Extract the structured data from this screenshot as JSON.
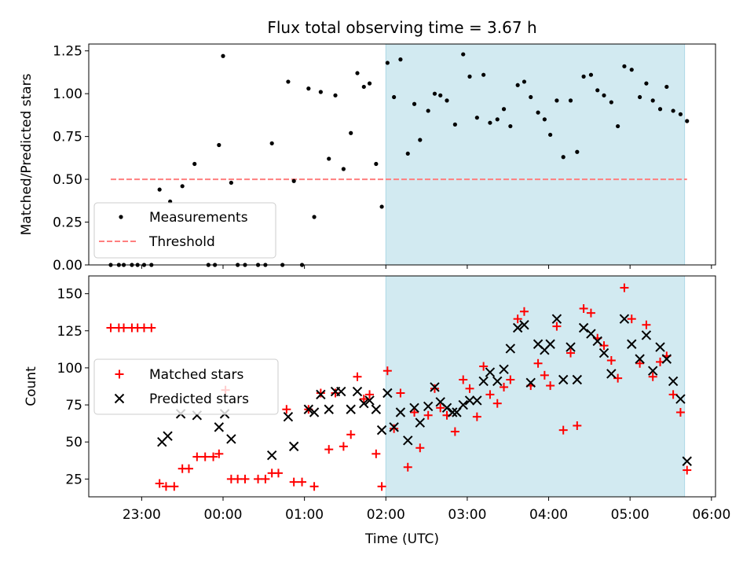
{
  "chart_data": [
    {
      "type": "scatter",
      "title": "Flux total observing time = 3.67 h",
      "xlabel": "",
      "ylabel": "Matched/Predicted stars",
      "xlim": [
        22.35,
        6.05
      ],
      "ylim": [
        0,
        1.29
      ],
      "yticks": [
        0,
        0.25,
        0.5,
        0.75,
        1.0,
        1.25
      ],
      "ytick_labels": [
        "0.00",
        "0.25",
        "0.50",
        "0.75",
        "1.00",
        "1.25"
      ],
      "shaded_span": [
        2.0,
        5.67
      ],
      "shade_color": "#add8e6",
      "threshold": {
        "name": "Threshold",
        "value": 0.5,
        "color": "#ff7f7f"
      },
      "legend_placement": "lower-left",
      "series": [
        {
          "name": "Measurements",
          "color": "#000000",
          "marker": "dot",
          "points": [
            [
              22.62,
              0
            ],
            [
              22.72,
              0
            ],
            [
              22.78,
              0
            ],
            [
              22.88,
              0
            ],
            [
              22.95,
              0
            ],
            [
              23.03,
              0
            ],
            [
              23.12,
              0
            ],
            [
              23.22,
              0.44
            ],
            [
              23.35,
              0.37
            ],
            [
              23.5,
              0.46
            ],
            [
              23.65,
              0.59
            ],
            [
              23.82,
              0
            ],
            [
              23.9,
              0
            ],
            [
              23.95,
              0.7
            ],
            [
              24.0,
              1.22
            ],
            [
              24.1,
              0.48
            ],
            [
              24.18,
              0
            ],
            [
              24.27,
              0
            ],
            [
              24.43,
              0
            ],
            [
              24.52,
              0
            ],
            [
              24.6,
              0.71
            ],
            [
              24.73,
              0
            ],
            [
              24.8,
              1.07
            ],
            [
              24.87,
              0.49
            ],
            [
              24.97,
              0
            ],
            [
              25.05,
              1.03
            ],
            [
              25.12,
              0.28
            ],
            [
              25.2,
              1.01
            ],
            [
              25.3,
              0.62
            ],
            [
              25.38,
              0.99
            ],
            [
              25.48,
              0.56
            ],
            [
              25.57,
              0.77
            ],
            [
              25.65,
              1.12
            ],
            [
              25.73,
              1.04
            ],
            [
              25.8,
              1.06
            ],
            [
              25.88,
              0.59
            ],
            [
              25.95,
              0.34
            ],
            [
              26.02,
              1.18
            ],
            [
              26.1,
              0.98
            ],
            [
              26.18,
              1.2
            ],
            [
              26.27,
              0.65
            ],
            [
              26.35,
              0.94
            ],
            [
              26.42,
              0.73
            ],
            [
              26.52,
              0.9
            ],
            [
              26.6,
              1.0
            ],
            [
              26.67,
              0.99
            ],
            [
              26.75,
              0.96
            ],
            [
              26.85,
              0.82
            ],
            [
              26.95,
              1.23
            ],
            [
              27.03,
              1.1
            ],
            [
              27.12,
              0.86
            ],
            [
              27.2,
              1.11
            ],
            [
              27.28,
              0.83
            ],
            [
              27.37,
              0.85
            ],
            [
              27.45,
              0.91
            ],
            [
              27.53,
              0.81
            ],
            [
              27.62,
              1.05
            ],
            [
              27.7,
              1.07
            ],
            [
              27.78,
              0.98
            ],
            [
              27.87,
              0.89
            ],
            [
              27.95,
              0.85
            ],
            [
              28.02,
              0.76
            ],
            [
              28.1,
              0.96
            ],
            [
              28.18,
              0.63
            ],
            [
              28.27,
              0.96
            ],
            [
              28.35,
              0.66
            ],
            [
              28.43,
              1.1
            ],
            [
              28.52,
              1.11
            ],
            [
              28.6,
              1.02
            ],
            [
              28.68,
              0.99
            ],
            [
              28.77,
              0.95
            ],
            [
              28.85,
              0.81
            ],
            [
              28.93,
              1.16
            ],
            [
              29.02,
              1.14
            ],
            [
              29.12,
              0.98
            ],
            [
              29.2,
              1.06
            ],
            [
              29.28,
              0.96
            ],
            [
              29.37,
              0.91
            ],
            [
              29.45,
              1.04
            ],
            [
              29.53,
              0.9
            ],
            [
              29.62,
              0.88
            ],
            [
              29.7,
              0.84
            ]
          ]
        }
      ]
    },
    {
      "type": "scatter",
      "title": "",
      "xlabel": "Time (UTC)",
      "ylabel": "Count",
      "xlim": [
        22.35,
        6.05
      ],
      "ylim": [
        13,
        162
      ],
      "yticks": [
        25,
        50,
        75,
        100,
        125,
        150
      ],
      "ytick_labels": [
        "25",
        "50",
        "75",
        "100",
        "125",
        "150"
      ],
      "xticks": [
        23,
        24,
        25,
        26,
        27,
        28,
        29,
        30
      ],
      "xtick_labels": [
        "23:00",
        "00:00",
        "01:00",
        "02:00",
        "03:00",
        "04:00",
        "05:00",
        "06:00"
      ],
      "shaded_span": [
        2.0,
        5.67
      ],
      "shade_color": "#add8e6",
      "legend_placement": "center-left",
      "series": [
        {
          "name": "Matched stars",
          "color": "#ff0000",
          "marker": "plus",
          "points": [
            [
              22.62,
              127
            ],
            [
              22.72,
              127
            ],
            [
              22.78,
              127
            ],
            [
              22.88,
              127
            ],
            [
              22.95,
              127
            ],
            [
              23.03,
              127
            ],
            [
              23.12,
              127
            ],
            [
              23.22,
              22
            ],
            [
              23.3,
              20
            ],
            [
              23.4,
              20
            ],
            [
              23.5,
              32
            ],
            [
              23.58,
              32
            ],
            [
              23.68,
              40
            ],
            [
              23.78,
              40
            ],
            [
              23.88,
              40
            ],
            [
              23.95,
              42
            ],
            [
              24.03,
              85
            ],
            [
              24.1,
              25
            ],
            [
              24.18,
              25
            ],
            [
              24.27,
              25
            ],
            [
              24.43,
              25
            ],
            [
              24.52,
              25
            ],
            [
              24.6,
              29
            ],
            [
              24.68,
              29
            ],
            [
              24.78,
              72
            ],
            [
              24.87,
              23
            ],
            [
              24.97,
              23
            ],
            [
              25.05,
              72
            ],
            [
              25.12,
              20
            ],
            [
              25.2,
              83
            ],
            [
              25.3,
              45
            ],
            [
              25.38,
              83
            ],
            [
              25.48,
              47
            ],
            [
              25.57,
              55
            ],
            [
              25.65,
              94
            ],
            [
              25.73,
              79
            ],
            [
              25.8,
              82
            ],
            [
              25.88,
              42
            ],
            [
              25.95,
              20
            ],
            [
              26.02,
              98
            ],
            [
              26.1,
              59
            ],
            [
              26.18,
              83
            ],
            [
              26.27,
              33
            ],
            [
              26.35,
              70
            ],
            [
              26.42,
              46
            ],
            [
              26.52,
              68
            ],
            [
              26.6,
              86
            ],
            [
              26.67,
              73
            ],
            [
              26.75,
              68
            ],
            [
              26.85,
              57
            ],
            [
              26.95,
              92
            ],
            [
              27.03,
              86
            ],
            [
              27.12,
              67
            ],
            [
              27.2,
              101
            ],
            [
              27.28,
              82
            ],
            [
              27.37,
              76
            ],
            [
              27.45,
              87
            ],
            [
              27.53,
              92
            ],
            [
              27.62,
              133
            ],
            [
              27.7,
              138
            ],
            [
              27.78,
              88
            ],
            [
              27.87,
              103
            ],
            [
              27.95,
              95
            ],
            [
              28.02,
              88
            ],
            [
              28.1,
              128
            ],
            [
              28.18,
              58
            ],
            [
              28.27,
              110
            ],
            [
              28.35,
              61
            ],
            [
              28.43,
              140
            ],
            [
              28.52,
              137
            ],
            [
              28.6,
              120
            ],
            [
              28.68,
              115
            ],
            [
              28.77,
              105
            ],
            [
              28.85,
              93
            ],
            [
              28.93,
              154
            ],
            [
              29.02,
              133
            ],
            [
              29.12,
              103
            ],
            [
              29.2,
              129
            ],
            [
              29.28,
              94
            ],
            [
              29.37,
              104
            ],
            [
              29.45,
              108
            ],
            [
              29.53,
              82
            ],
            [
              29.62,
              70
            ],
            [
              29.7,
              31
            ]
          ]
        },
        {
          "name": "Predicted stars",
          "color": "#000000",
          "marker": "x",
          "points": [
            [
              23.25,
              50
            ],
            [
              23.32,
              54
            ],
            [
              23.48,
              69
            ],
            [
              23.68,
              68
            ],
            [
              23.95,
              60
            ],
            [
              24.02,
              69
            ],
            [
              24.1,
              52
            ],
            [
              24.6,
              41
            ],
            [
              24.8,
              67
            ],
            [
              24.87,
              47
            ],
            [
              25.05,
              72
            ],
            [
              25.12,
              70
            ],
            [
              25.2,
              82
            ],
            [
              25.3,
              72
            ],
            [
              25.38,
              84
            ],
            [
              25.45,
              84
            ],
            [
              25.57,
              72
            ],
            [
              25.65,
              84
            ],
            [
              25.73,
              76
            ],
            [
              25.8,
              78
            ],
            [
              25.88,
              72
            ],
            [
              25.95,
              58
            ],
            [
              26.02,
              83
            ],
            [
              26.1,
              60
            ],
            [
              26.18,
              70
            ],
            [
              26.27,
              51
            ],
            [
              26.35,
              73
            ],
            [
              26.42,
              63
            ],
            [
              26.52,
              74
            ],
            [
              26.6,
              87
            ],
            [
              26.67,
              77
            ],
            [
              26.75,
              73
            ],
            [
              26.82,
              70
            ],
            [
              26.87,
              70
            ],
            [
              26.95,
              75
            ],
            [
              27.03,
              78
            ],
            [
              27.12,
              78
            ],
            [
              27.2,
              91
            ],
            [
              27.28,
              97
            ],
            [
              27.37,
              91
            ],
            [
              27.45,
              99
            ],
            [
              27.53,
              113
            ],
            [
              27.62,
              127
            ],
            [
              27.7,
              129
            ],
            [
              27.78,
              90
            ],
            [
              27.87,
              116
            ],
            [
              27.95,
              112
            ],
            [
              28.02,
              116
            ],
            [
              28.1,
              133
            ],
            [
              28.18,
              92
            ],
            [
              28.27,
              114
            ],
            [
              28.35,
              92
            ],
            [
              28.43,
              127
            ],
            [
              28.52,
              123
            ],
            [
              28.6,
              118
            ],
            [
              28.68,
              110
            ],
            [
              28.77,
              96
            ],
            [
              28.93,
              133
            ],
            [
              29.02,
              116
            ],
            [
              29.12,
              106
            ],
            [
              29.2,
              122
            ],
            [
              29.28,
              98
            ],
            [
              29.37,
              114
            ],
            [
              29.45,
              106
            ],
            [
              29.53,
              91
            ],
            [
              29.62,
              79
            ],
            [
              29.7,
              37
            ]
          ]
        }
      ]
    }
  ]
}
